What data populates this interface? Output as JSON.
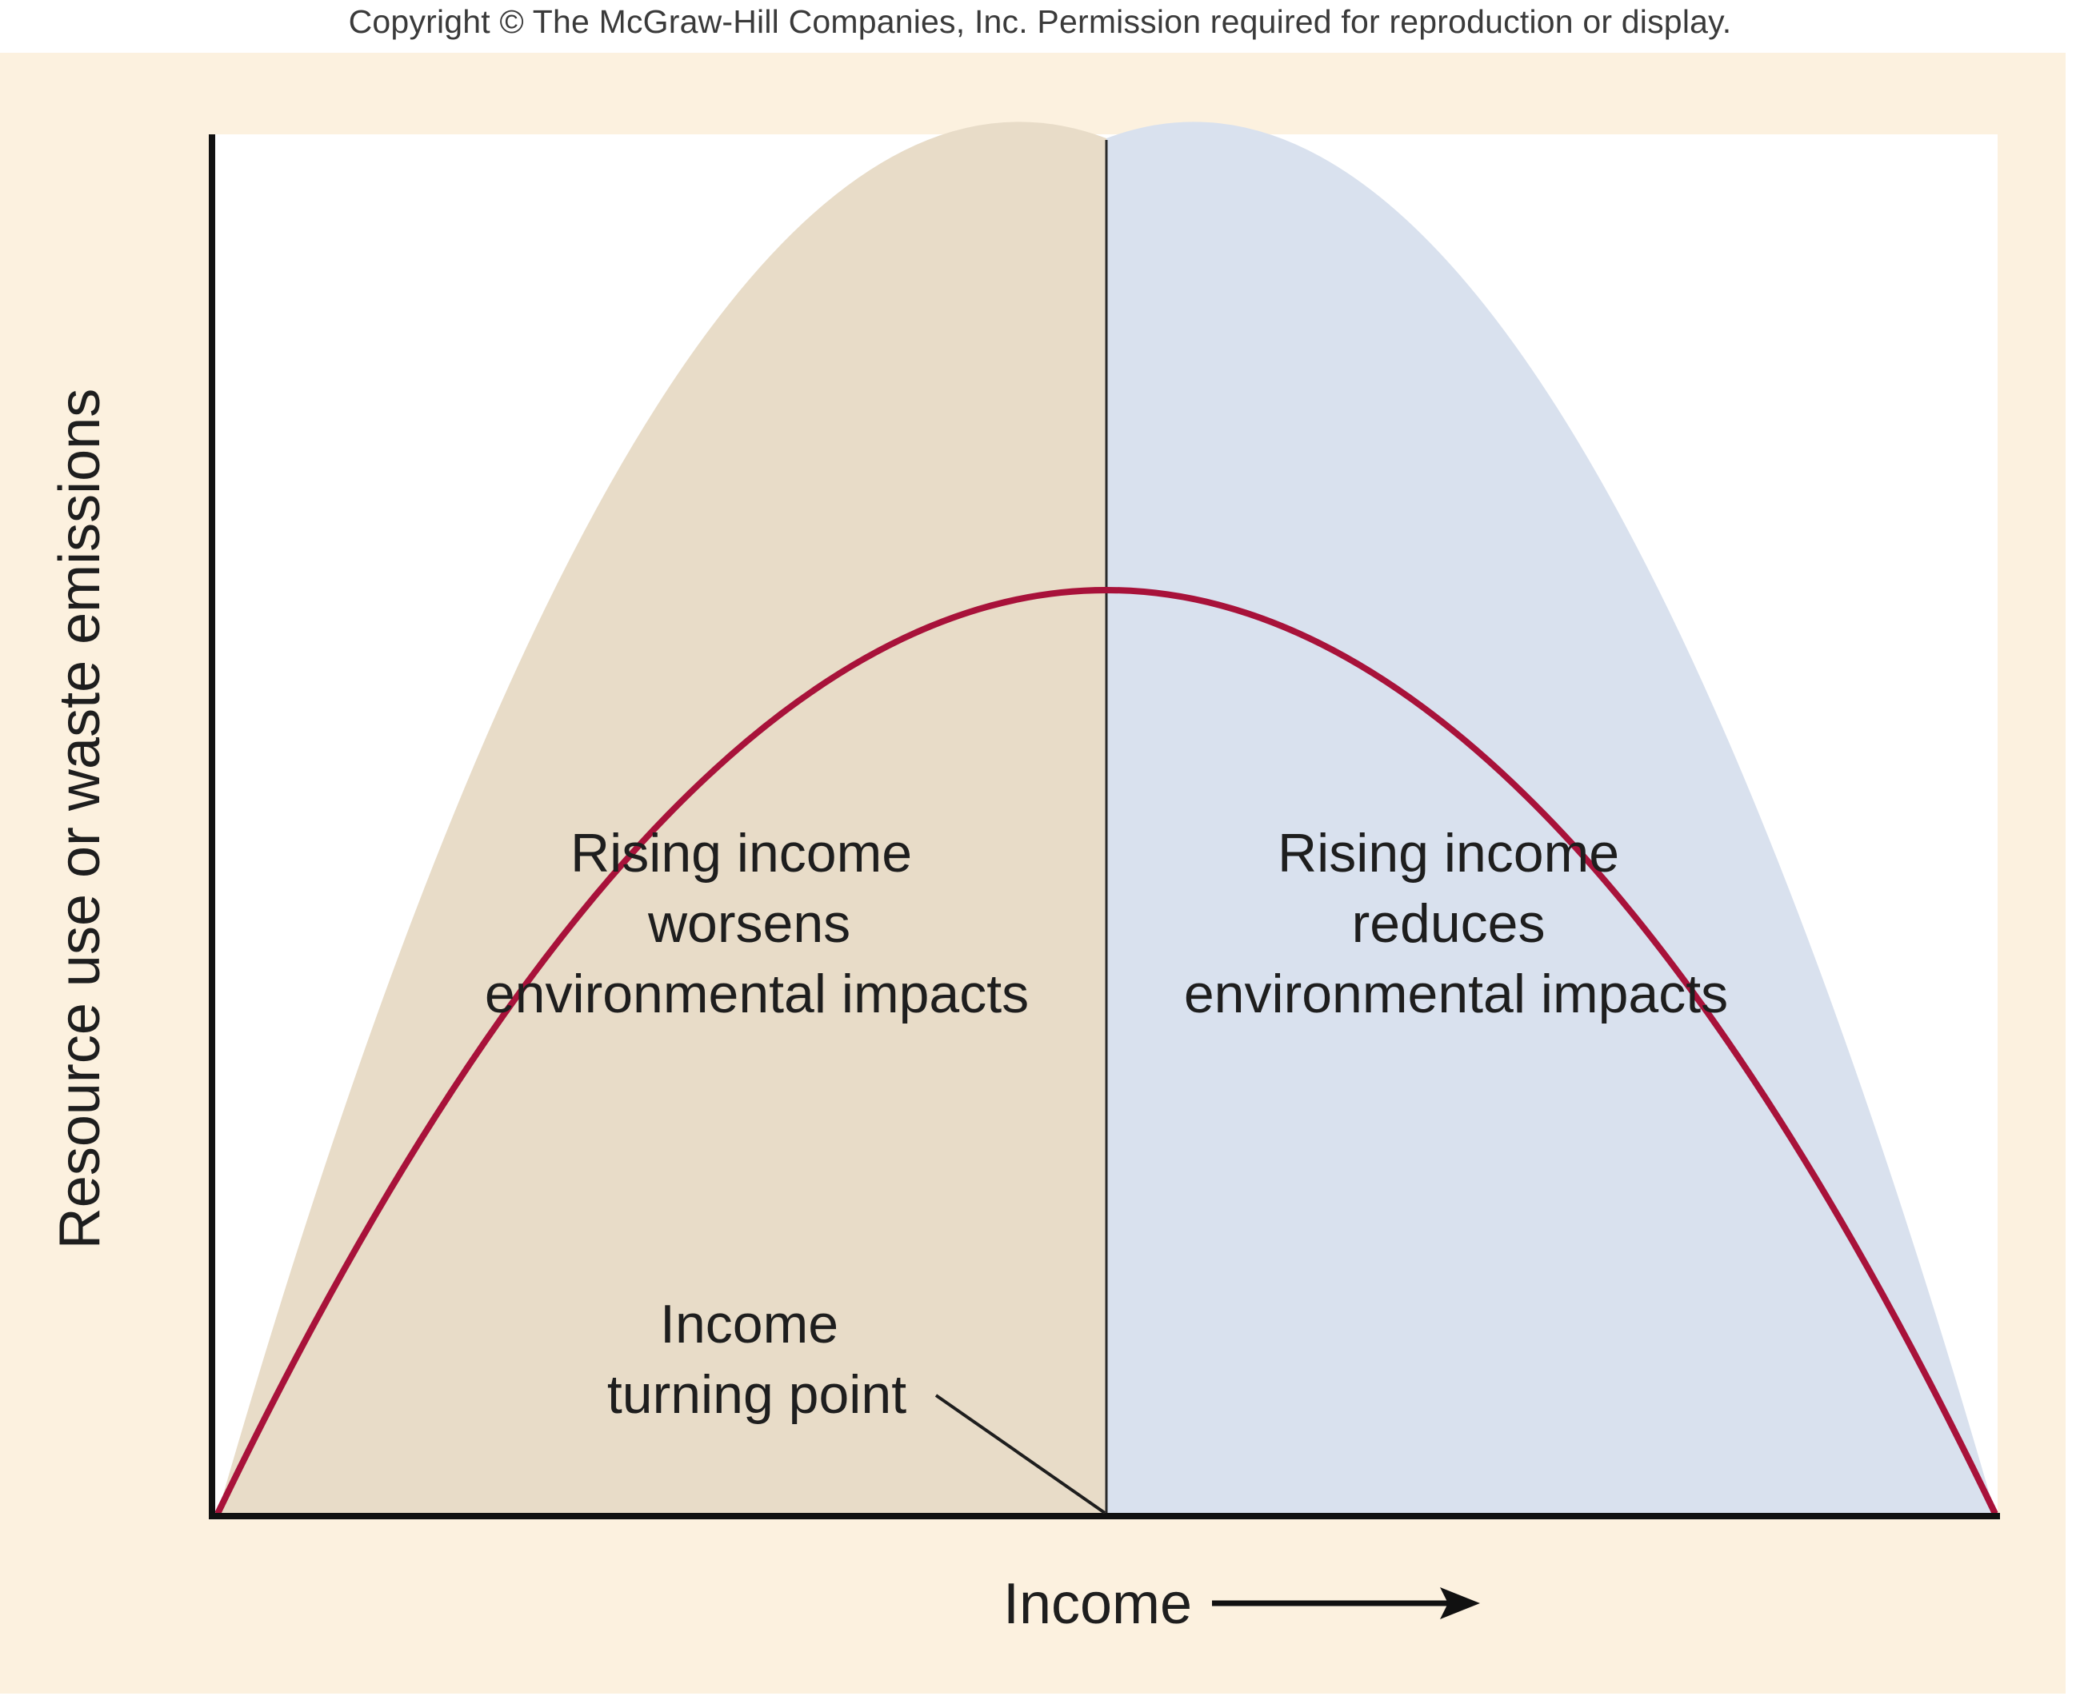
{
  "header": {
    "copyright": "Copyright © The McGraw-Hill Companies, Inc. Permission required for reproduction or display."
  },
  "axes": {
    "y_label": "Resource use or waste emissions",
    "x_label": "Income"
  },
  "regions": {
    "left_label": [
      "Rising income",
      "worsens",
      "environmental impacts"
    ],
    "right_label": [
      "Rising income",
      "reduces",
      "environmental impacts"
    ]
  },
  "turning_point": {
    "label": [
      "Income",
      "turning point"
    ]
  },
  "colors": {
    "panel_background": "#fcf1df",
    "plot_background": "#ffffff",
    "curve": "#a8123a",
    "left_fill": "#e8dcc8",
    "right_fill": "#d9e1ee",
    "axis": "#111111"
  }
}
